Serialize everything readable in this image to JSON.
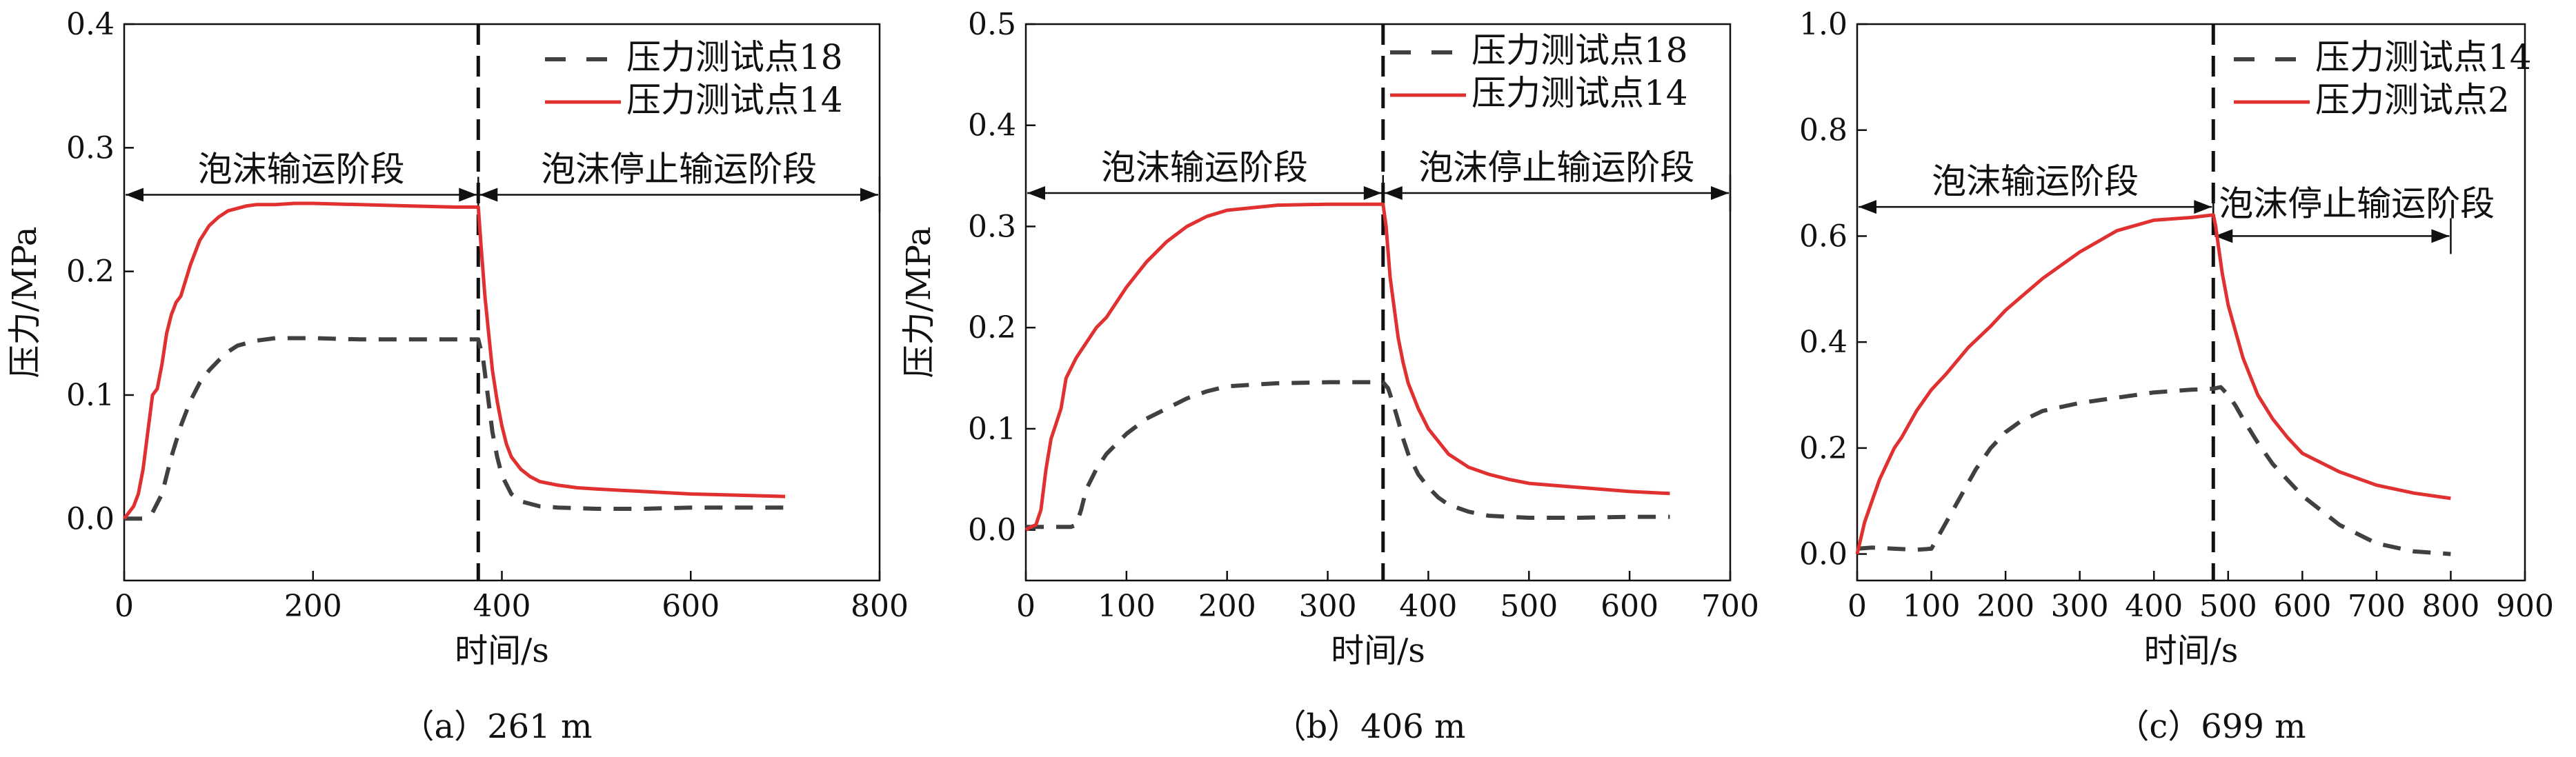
{
  "chart_data": [
    {
      "type": "line",
      "caption": "（a）261 m",
      "xlabel": "时间/s",
      "ylabel": "压力/MPa",
      "xlim": [
        0,
        800
      ],
      "ylim": [
        -0.05,
        0.4
      ],
      "xticks": [
        0,
        200,
        400,
        600,
        800
      ],
      "yticks": [
        0.0,
        0.1,
        0.2,
        0.3,
        0.4
      ],
      "grid": false,
      "legend_position": "top-right",
      "vline_x": 375,
      "phase_arrows": [
        {
          "label": "泡沫输运阶段",
          "x_start": 0,
          "x_end": 375,
          "y": 0.262
        },
        {
          "label": "泡沫停止输运阶段",
          "x_start": 375,
          "x_end": 800,
          "y": 0.262
        }
      ],
      "series": [
        {
          "name": "压力测试点18",
          "color": "#404040",
          "dash": true,
          "x": [
            0,
            20,
            30,
            40,
            50,
            60,
            70,
            80,
            90,
            100,
            110,
            120,
            130,
            140,
            160,
            180,
            200,
            250,
            300,
            350,
            375,
            380,
            385,
            390,
            395,
            400,
            410,
            420,
            440,
            460,
            500,
            550,
            600,
            650,
            700
          ],
          "y": [
            0.0,
            0.0,
            0.005,
            0.02,
            0.05,
            0.075,
            0.095,
            0.11,
            0.12,
            0.128,
            0.135,
            0.14,
            0.142,
            0.144,
            0.146,
            0.146,
            0.146,
            0.145,
            0.145,
            0.145,
            0.145,
            0.13,
            0.1,
            0.07,
            0.05,
            0.035,
            0.02,
            0.014,
            0.01,
            0.009,
            0.008,
            0.008,
            0.009,
            0.009,
            0.009
          ]
        },
        {
          "name": "压力测试点14",
          "color": "#e03030",
          "dash": false,
          "x": [
            0,
            5,
            10,
            15,
            20,
            25,
            30,
            35,
            40,
            45,
            50,
            55,
            60,
            70,
            80,
            90,
            100,
            110,
            120,
            130,
            140,
            160,
            180,
            200,
            250,
            300,
            350,
            375,
            378,
            382,
            386,
            390,
            395,
            400,
            405,
            410,
            420,
            430,
            440,
            460,
            480,
            500,
            550,
            600,
            650,
            700
          ],
          "y": [
            0.0,
            0.005,
            0.01,
            0.02,
            0.04,
            0.07,
            0.1,
            0.105,
            0.125,
            0.15,
            0.165,
            0.175,
            0.18,
            0.205,
            0.225,
            0.237,
            0.244,
            0.249,
            0.251,
            0.253,
            0.254,
            0.254,
            0.255,
            0.255,
            0.254,
            0.253,
            0.252,
            0.252,
            0.22,
            0.18,
            0.15,
            0.12,
            0.095,
            0.075,
            0.06,
            0.05,
            0.04,
            0.034,
            0.03,
            0.027,
            0.025,
            0.024,
            0.022,
            0.02,
            0.019,
            0.018
          ]
        }
      ]
    },
    {
      "type": "line",
      "caption": "（b）406 m",
      "xlabel": "时间/s",
      "ylabel": "压力/MPa",
      "xlim": [
        0,
        700
      ],
      "ylim": [
        -0.05,
        0.5
      ],
      "xticks": [
        0,
        100,
        200,
        300,
        400,
        500,
        600,
        700
      ],
      "yticks": [
        0.0,
        0.1,
        0.2,
        0.3,
        0.4,
        0.5
      ],
      "grid": false,
      "legend_position": "top-right",
      "vline_x": 355,
      "phase_arrows": [
        {
          "label": "泡沫输运阶段",
          "x_start": 0,
          "x_end": 355,
          "y": 0.333
        },
        {
          "label": "泡沫停止输运阶段",
          "x_start": 355,
          "x_end": 700,
          "y": 0.333
        }
      ],
      "series": [
        {
          "name": "压力测试点18",
          "color": "#404040",
          "dash": true,
          "x": [
            0,
            20,
            40,
            45,
            50,
            55,
            60,
            65,
            70,
            80,
            90,
            100,
            120,
            140,
            160,
            180,
            200,
            250,
            300,
            340,
            355,
            360,
            365,
            370,
            375,
            380,
            390,
            400,
            410,
            420,
            440,
            460,
            500,
            550,
            600,
            640
          ],
          "y": [
            0.003,
            0.003,
            0.003,
            0.003,
            0.005,
            0.02,
            0.04,
            0.05,
            0.06,
            0.075,
            0.085,
            0.095,
            0.11,
            0.12,
            0.13,
            0.137,
            0.142,
            0.145,
            0.146,
            0.146,
            0.146,
            0.14,
            0.125,
            0.108,
            0.09,
            0.075,
            0.055,
            0.042,
            0.032,
            0.025,
            0.018,
            0.014,
            0.012,
            0.012,
            0.013,
            0.013
          ]
        },
        {
          "name": "压力测试点14",
          "color": "#e03030",
          "dash": false,
          "x": [
            0,
            5,
            10,
            15,
            20,
            25,
            30,
            35,
            40,
            50,
            60,
            70,
            80,
            100,
            120,
            140,
            160,
            180,
            200,
            250,
            300,
            340,
            355,
            358,
            362,
            366,
            370,
            375,
            380,
            390,
            400,
            420,
            440,
            460,
            480,
            500,
            550,
            600,
            640
          ],
          "y": [
            0.0,
            0.003,
            0.005,
            0.02,
            0.06,
            0.09,
            0.105,
            0.12,
            0.15,
            0.17,
            0.185,
            0.2,
            0.21,
            0.24,
            0.265,
            0.285,
            0.3,
            0.31,
            0.316,
            0.321,
            0.322,
            0.322,
            0.322,
            0.3,
            0.25,
            0.22,
            0.19,
            0.165,
            0.145,
            0.12,
            0.1,
            0.075,
            0.062,
            0.055,
            0.05,
            0.046,
            0.042,
            0.038,
            0.036
          ]
        }
      ]
    },
    {
      "type": "line",
      "caption": "（c）699 m",
      "xlabel": "时间/s",
      "ylabel": "",
      "xlim": [
        0,
        900
      ],
      "ylim": [
        -0.05,
        1.0
      ],
      "xticks": [
        0,
        100,
        200,
        300,
        400,
        500,
        600,
        700,
        800,
        900
      ],
      "yticks": [
        0.0,
        0.2,
        0.4,
        0.6,
        0.8,
        1.0
      ],
      "grid": false,
      "legend_position": "top-right",
      "vline_x": 480,
      "phase_arrows": [
        {
          "label": "泡沫输运阶段",
          "x_start": 0,
          "x_end": 480,
          "y": 0.655
        },
        {
          "label": "泡沫停止输运阶段",
          "x_start": 480,
          "x_end": 800,
          "y": 0.6
        }
      ],
      "series": [
        {
          "name": "压力测试点14",
          "color": "#404040",
          "dash": true,
          "x": [
            0,
            20,
            50,
            80,
            100,
            120,
            140,
            160,
            180,
            200,
            220,
            250,
            300,
            350,
            400,
            450,
            480,
            490,
            500,
            510,
            520,
            540,
            560,
            600,
            650,
            700,
            750,
            800
          ],
          "y": [
            0.01,
            0.012,
            0.01,
            0.008,
            0.01,
            0.06,
            0.11,
            0.16,
            0.2,
            0.23,
            0.25,
            0.27,
            0.285,
            0.295,
            0.305,
            0.31,
            0.312,
            0.315,
            0.3,
            0.28,
            0.255,
            0.21,
            0.17,
            0.11,
            0.055,
            0.02,
            0.005,
            0.0
          ]
        },
        {
          "name": "压力测试点2",
          "color": "#e03030",
          "dash": false,
          "x": [
            0,
            5,
            10,
            20,
            30,
            40,
            50,
            60,
            80,
            100,
            120,
            150,
            180,
            200,
            250,
            300,
            350,
            400,
            450,
            480,
            483,
            487,
            492,
            500,
            510,
            520,
            540,
            560,
            580,
            600,
            650,
            700,
            750,
            800
          ],
          "y": [
            0.0,
            0.03,
            0.06,
            0.1,
            0.14,
            0.17,
            0.2,
            0.22,
            0.27,
            0.31,
            0.34,
            0.39,
            0.43,
            0.46,
            0.52,
            0.57,
            0.61,
            0.63,
            0.635,
            0.64,
            0.62,
            0.58,
            0.53,
            0.47,
            0.42,
            0.37,
            0.3,
            0.255,
            0.22,
            0.19,
            0.155,
            0.13,
            0.115,
            0.105
          ]
        }
      ]
    }
  ]
}
